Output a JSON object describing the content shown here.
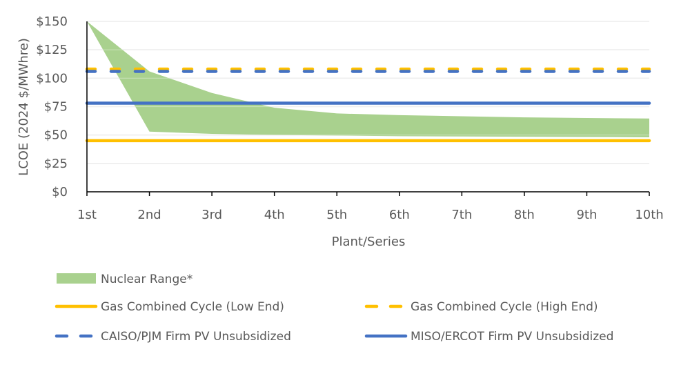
{
  "chart_data": {
    "type": "area",
    "title": "",
    "xlabel": "Plant/Series",
    "ylabel": "LCOE (2024 $/MWhre)",
    "categories": [
      "1st",
      "2nd",
      "3rd",
      "4th",
      "5th",
      "6th",
      "7th",
      "8th",
      "9th",
      "10th"
    ],
    "ylim": [
      0,
      150
    ],
    "yticks": [
      0,
      25,
      50,
      75,
      100,
      125,
      150
    ],
    "ytick_labels": [
      "$0",
      "$25",
      "$50",
      "$75",
      "$100",
      "$125",
      "$150"
    ],
    "grid": true,
    "legend_position": "bottom",
    "range_series": {
      "name": "Nuclear Range*",
      "color": "#a9d18e",
      "upper": [
        150,
        106,
        87,
        74,
        69,
        67.5,
        66.5,
        65.5,
        65,
        64.5
      ],
      "lower": [
        150,
        53,
        51,
        50,
        49.5,
        49,
        48.7,
        48.5,
        48.3,
        48
      ]
    },
    "series": [
      {
        "name": "Gas Combined Cycle (Low End)",
        "color": "#ffc000",
        "dash": "solid",
        "values": [
          45,
          45,
          45,
          45,
          45,
          45,
          45,
          45,
          45,
          45
        ]
      },
      {
        "name": "Gas Combined Cycle (High End)",
        "color": "#ffc000",
        "dash": "dashed",
        "values": [
          108,
          108,
          108,
          108,
          108,
          108,
          108,
          108,
          108,
          108
        ]
      },
      {
        "name": "CAISO/PJM Firm PV Unsubsidized",
        "color": "#4472c4",
        "dash": "dashed",
        "values": [
          106,
          106,
          106,
          106,
          106,
          106,
          106,
          106,
          106,
          106
        ]
      },
      {
        "name": "MISO/ERCOT Firm PV Unsubsidized",
        "color": "#4472c4",
        "dash": "solid",
        "values": [
          78,
          78,
          78,
          78,
          78,
          78,
          78,
          78,
          78,
          78
        ]
      }
    ]
  }
}
